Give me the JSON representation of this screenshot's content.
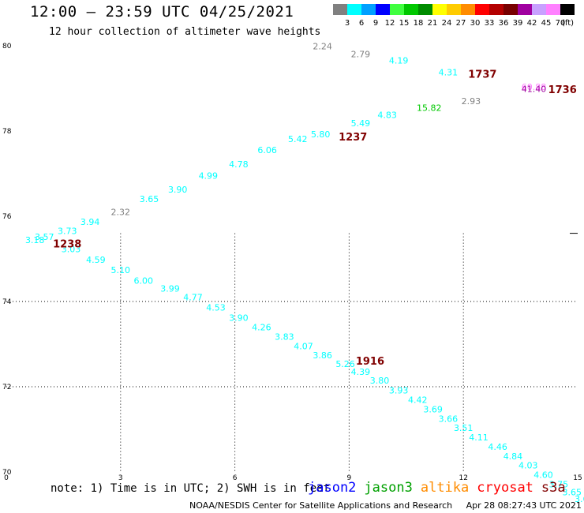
{
  "header": {
    "title": "12:00 — 23:59 UTC 04/25/2021",
    "subtitle": "12 hour collection of altimeter wave heights"
  },
  "colorbar": {
    "unit": "(ft)",
    "levels": [
      {
        "label": "3",
        "color": "#808080"
      },
      {
        "label": "6",
        "color": "#00ffff"
      },
      {
        "label": "9",
        "color": "#00a0ff"
      },
      {
        "label": "12",
        "color": "#0000ff"
      },
      {
        "label": "15",
        "color": "#40ff40"
      },
      {
        "label": "18",
        "color": "#00c800"
      },
      {
        "label": "21",
        "color": "#008c00"
      },
      {
        "label": "24",
        "color": "#ffff00"
      },
      {
        "label": "27",
        "color": "#ffcc00"
      },
      {
        "label": "30",
        "color": "#ff8c00"
      },
      {
        "label": "33",
        "color": "#ff0000"
      },
      {
        "label": "36",
        "color": "#b40000"
      },
      {
        "label": "39",
        "color": "#780000"
      },
      {
        "label": "42",
        "color": "#a000a0"
      },
      {
        "label": "45",
        "color": "#c8a0ff"
      },
      {
        "label": "70",
        "color": "#ff80ff"
      },
      {
        "label": "",
        "color": "#000000"
      }
    ]
  },
  "chart_data": {
    "type": "scatter",
    "xlim": [
      0,
      15
    ],
    "ylim": [
      70,
      80
    ],
    "x_ticks": [
      {
        "value": 0,
        "label": "0"
      },
      {
        "value": 3,
        "label": "3"
      },
      {
        "value": 6,
        "label": "6"
      },
      {
        "value": 9,
        "label": "9"
      },
      {
        "value": 12,
        "label": "12"
      },
      {
        "value": 15,
        "label": "15"
      }
    ],
    "y_ticks": [
      {
        "value": 70,
        "label": "70"
      },
      {
        "value": 72,
        "label": "72"
      },
      {
        "value": 74,
        "label": "74"
      },
      {
        "value": 76,
        "label": "76"
      },
      {
        "value": 78,
        "label": "78"
      },
      {
        "value": 80,
        "label": "80"
      }
    ],
    "grid": true,
    "wave_heights": [
      {
        "x": 8.3,
        "y": 79.92,
        "label": "2.24",
        "color": "#808080"
      },
      {
        "x": 9.3,
        "y": 79.73,
        "label": "2.79",
        "color": "#808080"
      },
      {
        "x": 10.3,
        "y": 79.58,
        "label": "4.19",
        "color": "#00ffff"
      },
      {
        "x": 11.6,
        "y": 79.31,
        "label": "4.31",
        "color": "#00ffff"
      },
      {
        "x": 13.85,
        "y": 78.96,
        "label": "60.88",
        "color": "#ff80ff"
      },
      {
        "x": 13.85,
        "y": 78.92,
        "label": "41.40",
        "color": "#a000a0"
      },
      {
        "x": 12.2,
        "y": 78.63,
        "label": "2.93",
        "color": "#808080"
      },
      {
        "x": 11.1,
        "y": 78.47,
        "label": "15.82",
        "color": "#00c800"
      },
      {
        "x": 10.0,
        "y": 78.31,
        "label": "4.83",
        "color": "#00ffff"
      },
      {
        "x": 9.3,
        "y": 78.11,
        "label": "5.49",
        "color": "#00ffff"
      },
      {
        "x": 8.25,
        "y": 77.85,
        "label": "5.80",
        "color": "#00ffff"
      },
      {
        "x": 7.65,
        "y": 77.74,
        "label": "5.42",
        "color": "#00ffff"
      },
      {
        "x": 6.85,
        "y": 77.48,
        "label": "6.06",
        "color": "#00ffff"
      },
      {
        "x": 6.1,
        "y": 77.15,
        "label": "4.78",
        "color": "#00ffff"
      },
      {
        "x": 5.3,
        "y": 76.88,
        "label": "4.99",
        "color": "#00ffff"
      },
      {
        "x": 4.5,
        "y": 76.56,
        "label": "3.90",
        "color": "#00ffff"
      },
      {
        "x": 3.75,
        "y": 76.33,
        "label": "3.65",
        "color": "#00ffff"
      },
      {
        "x": 3.0,
        "y": 76.03,
        "label": "2.32",
        "color": "#808080"
      },
      {
        "x": 2.2,
        "y": 75.8,
        "label": "3.94",
        "color": "#00ffff"
      },
      {
        "x": 1.6,
        "y": 75.58,
        "label": "3.73",
        "color": "#00ffff"
      },
      {
        "x": 1.0,
        "y": 75.44,
        "label": "3.57",
        "color": "#00ffff"
      },
      {
        "x": 0.75,
        "y": 75.37,
        "label": "3.18",
        "color": "#00ffff"
      },
      {
        "x": 1.7,
        "y": 75.16,
        "label": "3.03",
        "color": "#00ffff"
      },
      {
        "x": 2.35,
        "y": 74.91,
        "label": "4.59",
        "color": "#00ffff"
      },
      {
        "x": 3.0,
        "y": 74.67,
        "label": "5.10",
        "color": "#00ffff"
      },
      {
        "x": 3.6,
        "y": 74.42,
        "label": "6.00",
        "color": "#00ffff"
      },
      {
        "x": 4.3,
        "y": 74.23,
        "label": "3.99",
        "color": "#00ffff"
      },
      {
        "x": 4.9,
        "y": 74.03,
        "label": "4.77",
        "color": "#00ffff"
      },
      {
        "x": 5.5,
        "y": 73.79,
        "label": "4.53",
        "color": "#00ffff"
      },
      {
        "x": 6.1,
        "y": 73.55,
        "label": "3.90",
        "color": "#00ffff"
      },
      {
        "x": 6.7,
        "y": 73.32,
        "label": "4.26",
        "color": "#00ffff"
      },
      {
        "x": 7.3,
        "y": 73.1,
        "label": "3.83",
        "color": "#00ffff"
      },
      {
        "x": 7.8,
        "y": 72.88,
        "label": "4.07",
        "color": "#00ffff"
      },
      {
        "x": 8.3,
        "y": 72.67,
        "label": "3.86",
        "color": "#00ffff"
      },
      {
        "x": 8.9,
        "y": 72.46,
        "label": "5.26",
        "color": "#00ffff"
      },
      {
        "x": 9.3,
        "y": 72.28,
        "label": "4.39",
        "color": "#00ffff"
      },
      {
        "x": 9.8,
        "y": 72.07,
        "label": "3.80",
        "color": "#00ffff"
      },
      {
        "x": 10.3,
        "y": 71.84,
        "label": "3.93",
        "color": "#00ffff"
      },
      {
        "x": 10.8,
        "y": 71.62,
        "label": "4.42",
        "color": "#00ffff"
      },
      {
        "x": 11.2,
        "y": 71.4,
        "label": "3.69",
        "color": "#00ffff"
      },
      {
        "x": 11.6,
        "y": 71.18,
        "label": "3.66",
        "color": "#00ffff"
      },
      {
        "x": 12.0,
        "y": 70.96,
        "label": "3.51",
        "color": "#00ffff"
      },
      {
        "x": 12.4,
        "y": 70.74,
        "label": "4.11",
        "color": "#00ffff"
      },
      {
        "x": 12.9,
        "y": 70.52,
        "label": "4.46",
        "color": "#00ffff"
      },
      {
        "x": 13.3,
        "y": 70.3,
        "label": "4.84",
        "color": "#00ffff"
      },
      {
        "x": 13.7,
        "y": 70.08,
        "label": "4.03",
        "color": "#00ffff"
      },
      {
        "x": 14.1,
        "y": 69.86,
        "label": "4.60",
        "color": "#00ffff"
      },
      {
        "x": 14.5,
        "y": 69.64,
        "label": "3.75",
        "color": "#00ffff"
      },
      {
        "x": 14.85,
        "y": 69.45,
        "label": "3.65",
        "color": "#00ffff"
      },
      {
        "x": 15.1,
        "y": 69.3,
        "label": "3.6",
        "color": "#00ffff"
      }
    ],
    "pass_times": [
      {
        "x": 12.5,
        "y": 79.25,
        "label": "1737"
      },
      {
        "x": 14.6,
        "y": 78.89,
        "label": "1736"
      },
      {
        "x": 9.1,
        "y": 77.78,
        "label": "1237"
      },
      {
        "x": 1.6,
        "y": 75.27,
        "label": "1238"
      },
      {
        "x": 9.55,
        "y": 72.52,
        "label": "1916"
      }
    ]
  },
  "footer": {
    "note": "note: 1) Time is in UTC; 2) SWH is in feet",
    "satellites": [
      {
        "name": "jason2",
        "color": "#0000ff"
      },
      {
        "name": "jason3",
        "color": "#00a000"
      },
      {
        "name": "altika",
        "color": "#ff8c00"
      },
      {
        "name": "cryosat",
        "color": "#ff0000"
      },
      {
        "name": "s3a",
        "color": "#800000"
      }
    ],
    "credit": "NOAA/NESDIS Center for Satellite Applications and Research",
    "timestamp": "Apr 28 08:27:43 UTC 2021"
  }
}
